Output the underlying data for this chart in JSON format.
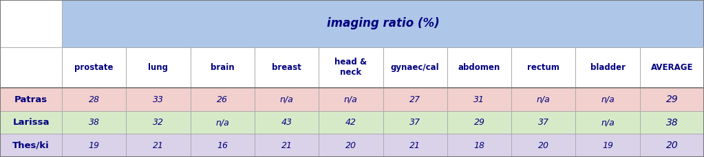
{
  "title": "imaging ratio (%)",
  "title_bg": "#aec6e8",
  "col_headers": [
    "prostate",
    "lung",
    "brain",
    "breast",
    "head &\nneck",
    "gynaec/cal",
    "abdomen",
    "rectum",
    "bladder",
    "AVERAGE"
  ],
  "row_headers": [
    "Patras",
    "Larissa",
    "Thes/ki"
  ],
  "table_data": [
    [
      "28",
      "33",
      "26",
      "n/a",
      "n/a",
      "27",
      "31",
      "n/a",
      "n/a",
      "29"
    ],
    [
      "38",
      "32",
      "n/a",
      "43",
      "42",
      "37",
      "29",
      "37",
      "n/a",
      "38"
    ],
    [
      "19",
      "21",
      "16",
      "21",
      "20",
      "21",
      "18",
      "20",
      "19",
      "20"
    ]
  ],
  "row_colors": [
    "#f2d0cd",
    "#d6eac8",
    "#d9d2e9"
  ],
  "header_bg": "#ffffff",
  "col_header_color": "#000080",
  "row_header_text_color": "#000080",
  "data_text_color": "#000080",
  "title_text_color": "#000080",
  "border_color": "#aaaaaa",
  "figsize": [
    10.23,
    2.29
  ],
  "dpi": 100
}
